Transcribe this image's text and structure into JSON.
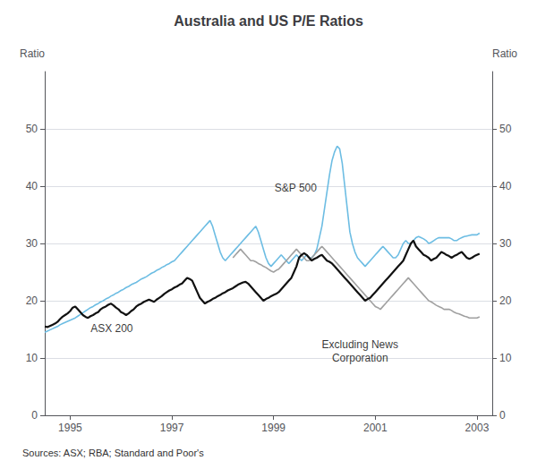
{
  "chart_data": {
    "type": "line",
    "title": "Australia and US P/E Ratios",
    "ylabel": "Ratio",
    "y2label": "Ratio",
    "source": "Sources: ASX; RBA; Standard and Poor's",
    "xlim": [
      1994.5,
      2003.3
    ],
    "xticks": [
      1995,
      1997,
      1999,
      2001,
      2003
    ],
    "ylim": [
      0,
      60
    ],
    "yticks": [
      0,
      10,
      20,
      30,
      40,
      50
    ],
    "y2lim": [
      0,
      60
    ],
    "y2ticks": [
      0,
      10,
      20,
      30,
      40,
      50
    ],
    "grid": true,
    "annotations": [
      {
        "text": "ASX 200",
        "x": 1995.4,
        "y": 14.0
      },
      {
        "text": "S&P 500",
        "x": 1999.85,
        "y": 38.5
      },
      {
        "text": "Excluding News\nCorporation",
        "x": 2000.7,
        "y": 13.5
      }
    ],
    "series": [
      {
        "name": "S&P 500",
        "color": "#6dbde3",
        "x": [
          1994.5,
          1994.55,
          1994.6,
          1994.65,
          1994.7,
          1994.75,
          1994.8,
          1994.85,
          1994.9,
          1994.95,
          1995.0,
          1995.05,
          1995.1,
          1995.15,
          1995.2,
          1995.25,
          1995.3,
          1995.35,
          1995.4,
          1995.45,
          1995.5,
          1995.55,
          1995.6,
          1995.65,
          1995.7,
          1995.75,
          1995.8,
          1995.85,
          1995.9,
          1995.95,
          1996.0,
          1996.05,
          1996.1,
          1996.15,
          1996.2,
          1996.25,
          1996.3,
          1996.35,
          1996.4,
          1996.45,
          1996.5,
          1996.55,
          1996.6,
          1996.65,
          1996.7,
          1996.75,
          1996.8,
          1996.85,
          1996.9,
          1996.95,
          1997.0,
          1997.05,
          1997.1,
          1997.15,
          1997.2,
          1997.25,
          1997.3,
          1997.35,
          1997.4,
          1997.45,
          1997.5,
          1997.55,
          1997.6,
          1997.65,
          1997.7,
          1997.75,
          1997.8,
          1997.85,
          1997.9,
          1997.95,
          1998.0,
          1998.05,
          1998.1,
          1998.15,
          1998.2,
          1998.25,
          1998.3,
          1998.35,
          1998.4,
          1998.45,
          1998.5,
          1998.55,
          1998.6,
          1998.65,
          1998.7,
          1998.75,
          1998.8,
          1998.85,
          1998.9,
          1998.95,
          1999.0,
          1999.05,
          1999.1,
          1999.15,
          1999.2,
          1999.25,
          1999.3,
          1999.35,
          1999.4,
          1999.45,
          1999.5,
          1999.55,
          1999.6,
          1999.65,
          1999.7,
          1999.75,
          1999.8,
          1999.85,
          1999.9,
          1999.95,
          2000.0,
          2000.05,
          2000.1,
          2000.15,
          2000.2,
          2000.25,
          2000.3,
          2000.35,
          2000.4,
          2000.45,
          2000.5,
          2000.55,
          2000.6,
          2000.65,
          2000.7,
          2000.75,
          2000.8,
          2000.85,
          2000.9,
          2000.95,
          2001.0,
          2001.05,
          2001.1,
          2001.15,
          2001.2,
          2001.25,
          2001.3,
          2001.35,
          2001.4,
          2001.45,
          2001.5,
          2001.55,
          2001.6,
          2001.65,
          2001.7,
          2001.75,
          2001.8,
          2001.85,
          2001.9,
          2001.95,
          2002.0,
          2002.05,
          2002.1,
          2002.15,
          2002.2,
          2002.25,
          2002.3,
          2002.35,
          2002.4,
          2002.45,
          2002.5,
          2002.55,
          2002.6,
          2002.65,
          2002.7,
          2002.75,
          2002.8,
          2002.85,
          2002.9,
          2002.95,
          2003.0,
          2003.05
        ],
        "values": [
          14.5,
          14.7,
          14.9,
          15.1,
          15.3,
          15.5,
          15.8,
          16.0,
          16.2,
          16.4,
          16.6,
          16.8,
          17.0,
          17.3,
          17.6,
          17.9,
          18.2,
          18.5,
          18.8,
          19.0,
          19.3,
          19.5,
          19.8,
          20.0,
          20.3,
          20.5,
          20.8,
          21.0,
          21.3,
          21.5,
          21.8,
          22.0,
          22.3,
          22.5,
          22.8,
          23.0,
          23.2,
          23.5,
          23.8,
          24.0,
          24.2,
          24.5,
          24.8,
          25.0,
          25.3,
          25.5,
          25.8,
          26.0,
          26.3,
          26.5,
          26.8,
          27.0,
          27.5,
          28.0,
          28.5,
          29.0,
          29.5,
          30.0,
          30.5,
          31.0,
          31.5,
          32.0,
          32.5,
          33.0,
          33.5,
          34.0,
          33.0,
          31.5,
          30.0,
          28.5,
          27.5,
          27.0,
          27.5,
          28.0,
          28.5,
          29.0,
          29.5,
          30.0,
          30.5,
          31.0,
          31.5,
          32.0,
          32.5,
          33.0,
          32.0,
          30.5,
          29.0,
          27.5,
          26.5,
          26.0,
          26.5,
          27.0,
          27.5,
          28.0,
          27.5,
          27.0,
          26.5,
          27.0,
          27.5,
          28.0,
          27.5,
          27.0,
          27.5,
          28.0,
          27.5,
          27.5,
          28.0,
          29.0,
          31.0,
          33.0,
          36.0,
          39.0,
          42.0,
          44.5,
          46.0,
          47.0,
          46.5,
          44.0,
          40.0,
          36.0,
          32.0,
          30.0,
          28.5,
          27.5,
          27.0,
          26.5,
          26.0,
          26.5,
          27.0,
          27.5,
          28.0,
          28.5,
          29.0,
          29.5,
          29.0,
          28.5,
          28.0,
          27.5,
          27.5,
          28.0,
          29.0,
          30.0,
          30.5,
          30.0,
          30.0,
          30.5,
          31.0,
          31.2,
          31.0,
          30.8,
          30.5,
          30.0,
          30.2,
          30.5,
          30.8,
          31.0,
          31.0,
          31.0,
          31.0,
          31.0,
          30.8,
          30.5,
          30.5,
          30.8,
          31.0,
          31.2,
          31.3,
          31.4,
          31.5,
          31.5,
          31.5,
          31.8
        ]
      },
      {
        "name": "Excluding News\nCorporation",
        "color": "#a0a0a0",
        "x": [
          1998.2,
          1998.25,
          1998.3,
          1998.35,
          1998.4,
          1998.45,
          1998.5,
          1998.55,
          1998.6,
          1998.65,
          1998.7,
          1998.75,
          1998.8,
          1998.85,
          1998.9,
          1998.95,
          1999.0,
          1999.05,
          1999.1,
          1999.15,
          1999.2,
          1999.25,
          1999.3,
          1999.35,
          1999.4,
          1999.45,
          1999.5,
          1999.55,
          1999.6,
          1999.65,
          1999.7,
          1999.75,
          1999.8,
          1999.85,
          1999.9,
          1999.95,
          2000.0,
          2000.05,
          2000.1,
          2000.15,
          2000.2,
          2000.25,
          2000.3,
          2000.35,
          2000.4,
          2000.45,
          2000.5,
          2000.55,
          2000.6,
          2000.65,
          2000.7,
          2000.75,
          2000.8,
          2000.85,
          2000.9,
          2000.95,
          2001.0,
          2001.05,
          2001.1,
          2001.15,
          2001.2,
          2001.25,
          2001.3,
          2001.35,
          2001.4,
          2001.45,
          2001.5,
          2001.55,
          2001.6,
          2001.65,
          2001.7,
          2001.75,
          2001.8,
          2001.85,
          2001.9,
          2001.95,
          2002.0,
          2002.05,
          2002.1,
          2002.15,
          2002.2,
          2002.25,
          2002.3,
          2002.35,
          2002.4,
          2002.45,
          2002.5,
          2002.55,
          2002.6,
          2002.65,
          2002.7,
          2002.75,
          2002.8,
          2002.85,
          2002.9,
          2002.95,
          2003.0,
          2003.05
        ],
        "values": [
          27.5,
          28.0,
          28.5,
          29.0,
          28.5,
          28.0,
          27.5,
          27.0,
          27.0,
          26.8,
          26.5,
          26.3,
          26.0,
          25.8,
          25.5,
          25.2,
          25.0,
          25.3,
          25.5,
          26.0,
          26.5,
          27.0,
          27.5,
          28.0,
          28.5,
          29.0,
          28.5,
          28.0,
          27.5,
          27.0,
          27.0,
          27.5,
          28.0,
          28.5,
          29.0,
          29.5,
          29.0,
          28.5,
          28.0,
          27.5,
          27.0,
          26.5,
          26.0,
          25.5,
          25.0,
          24.5,
          24.0,
          23.5,
          23.0,
          22.5,
          22.0,
          21.5,
          21.0,
          20.5,
          20.0,
          19.5,
          19.0,
          18.8,
          18.5,
          19.0,
          19.5,
          20.0,
          20.5,
          21.0,
          21.5,
          22.0,
          22.5,
          23.0,
          23.5,
          24.0,
          23.5,
          23.0,
          22.5,
          22.0,
          21.5,
          21.0,
          20.5,
          20.0,
          19.8,
          19.5,
          19.2,
          19.0,
          18.8,
          18.5,
          18.5,
          18.5,
          18.3,
          18.0,
          17.8,
          17.7,
          17.5,
          17.3,
          17.2,
          17.0,
          17.0,
          17.0,
          17.0,
          17.2
        ]
      },
      {
        "name": "ASX 200",
        "color": "#111111",
        "x": [
          1994.5,
          1994.55,
          1994.6,
          1994.65,
          1994.7,
          1994.75,
          1994.8,
          1994.85,
          1994.9,
          1994.95,
          1995.0,
          1995.05,
          1995.1,
          1995.15,
          1995.2,
          1995.25,
          1995.3,
          1995.35,
          1995.4,
          1995.45,
          1995.5,
          1995.55,
          1995.6,
          1995.65,
          1995.7,
          1995.75,
          1995.8,
          1995.85,
          1995.9,
          1995.95,
          1996.0,
          1996.05,
          1996.1,
          1996.15,
          1996.2,
          1996.25,
          1996.3,
          1996.35,
          1996.4,
          1996.45,
          1996.5,
          1996.55,
          1996.6,
          1996.65,
          1996.7,
          1996.75,
          1996.8,
          1996.85,
          1996.9,
          1996.95,
          1997.0,
          1997.05,
          1997.1,
          1997.15,
          1997.2,
          1997.25,
          1997.3,
          1997.35,
          1997.4,
          1997.45,
          1997.5,
          1997.55,
          1997.6,
          1997.65,
          1997.7,
          1997.75,
          1997.8,
          1997.85,
          1997.9,
          1997.95,
          1998.0,
          1998.05,
          1998.1,
          1998.15,
          1998.2,
          1998.25,
          1998.3,
          1998.35,
          1998.4,
          1998.45,
          1998.5,
          1998.55,
          1998.6,
          1998.65,
          1998.7,
          1998.75,
          1998.8,
          1998.85,
          1998.9,
          1998.95,
          1999.0,
          1999.05,
          1999.1,
          1999.15,
          1999.2,
          1999.25,
          1999.3,
          1999.35,
          1999.4,
          1999.45,
          1999.5,
          1999.55,
          1999.6,
          1999.65,
          1999.7,
          1999.75,
          1999.8,
          1999.85,
          1999.9,
          1999.95,
          2000.0,
          2000.05,
          2000.1,
          2000.15,
          2000.2,
          2000.25,
          2000.3,
          2000.35,
          2000.4,
          2000.45,
          2000.5,
          2000.55,
          2000.6,
          2000.65,
          2000.7,
          2000.75,
          2000.8,
          2000.85,
          2000.9,
          2000.95,
          2001.0,
          2001.05,
          2001.1,
          2001.15,
          2001.2,
          2001.25,
          2001.3,
          2001.35,
          2001.4,
          2001.45,
          2001.5,
          2001.55,
          2001.6,
          2001.65,
          2001.7,
          2001.75,
          2001.8,
          2001.85,
          2001.9,
          2001.95,
          2002.0,
          2002.05,
          2002.1,
          2002.15,
          2002.2,
          2002.25,
          2002.3,
          2002.35,
          2002.4,
          2002.45,
          2002.5,
          2002.55,
          2002.6,
          2002.65,
          2002.7,
          2002.75,
          2002.8,
          2002.85,
          2002.9,
          2002.95,
          2003.0,
          2003.05
        ],
        "values": [
          15.5,
          15.4,
          15.6,
          15.8,
          16.0,
          16.3,
          16.8,
          17.2,
          17.5,
          17.8,
          18.2,
          18.8,
          19.0,
          18.5,
          18.0,
          17.5,
          17.2,
          17.0,
          17.3,
          17.5,
          17.8,
          18.0,
          18.5,
          18.8,
          19.0,
          19.3,
          19.5,
          19.2,
          18.8,
          18.5,
          18.0,
          17.8,
          17.5,
          17.8,
          18.2,
          18.5,
          19.0,
          19.3,
          19.5,
          19.8,
          20.0,
          20.2,
          20.0,
          19.8,
          20.2,
          20.5,
          20.8,
          21.2,
          21.5,
          21.8,
          22.0,
          22.3,
          22.5,
          22.8,
          23.0,
          23.5,
          24.0,
          23.8,
          23.5,
          22.5,
          21.5,
          20.5,
          20.0,
          19.5,
          19.8,
          20.0,
          20.3,
          20.5,
          20.8,
          21.0,
          21.3,
          21.5,
          21.8,
          22.0,
          22.2,
          22.5,
          22.8,
          23.0,
          23.2,
          23.3,
          23.0,
          22.5,
          22.0,
          21.5,
          21.0,
          20.5,
          20.0,
          20.3,
          20.5,
          20.8,
          21.0,
          21.2,
          21.5,
          22.0,
          22.5,
          23.0,
          23.5,
          24.0,
          25.0,
          26.0,
          27.5,
          28.0,
          28.3,
          28.0,
          27.5,
          27.0,
          27.3,
          27.5,
          27.8,
          28.0,
          27.5,
          27.0,
          26.8,
          26.5,
          26.0,
          25.5,
          25.0,
          24.5,
          24.0,
          23.5,
          23.0,
          22.5,
          22.0,
          21.5,
          21.0,
          20.5,
          20.0,
          20.3,
          20.5,
          21.0,
          21.5,
          22.0,
          22.5,
          23.0,
          23.5,
          24.0,
          24.5,
          25.0,
          25.5,
          26.0,
          26.5,
          27.0,
          28.0,
          29.0,
          30.0,
          30.5,
          29.5,
          29.0,
          28.5,
          28.0,
          27.8,
          27.5,
          27.0,
          27.3,
          27.5,
          28.0,
          28.5,
          28.3,
          28.0,
          27.8,
          27.5,
          27.8,
          28.0,
          28.3,
          28.5,
          28.0,
          27.5,
          27.3,
          27.5,
          27.8,
          28.0,
          28.2
        ]
      }
    ]
  }
}
